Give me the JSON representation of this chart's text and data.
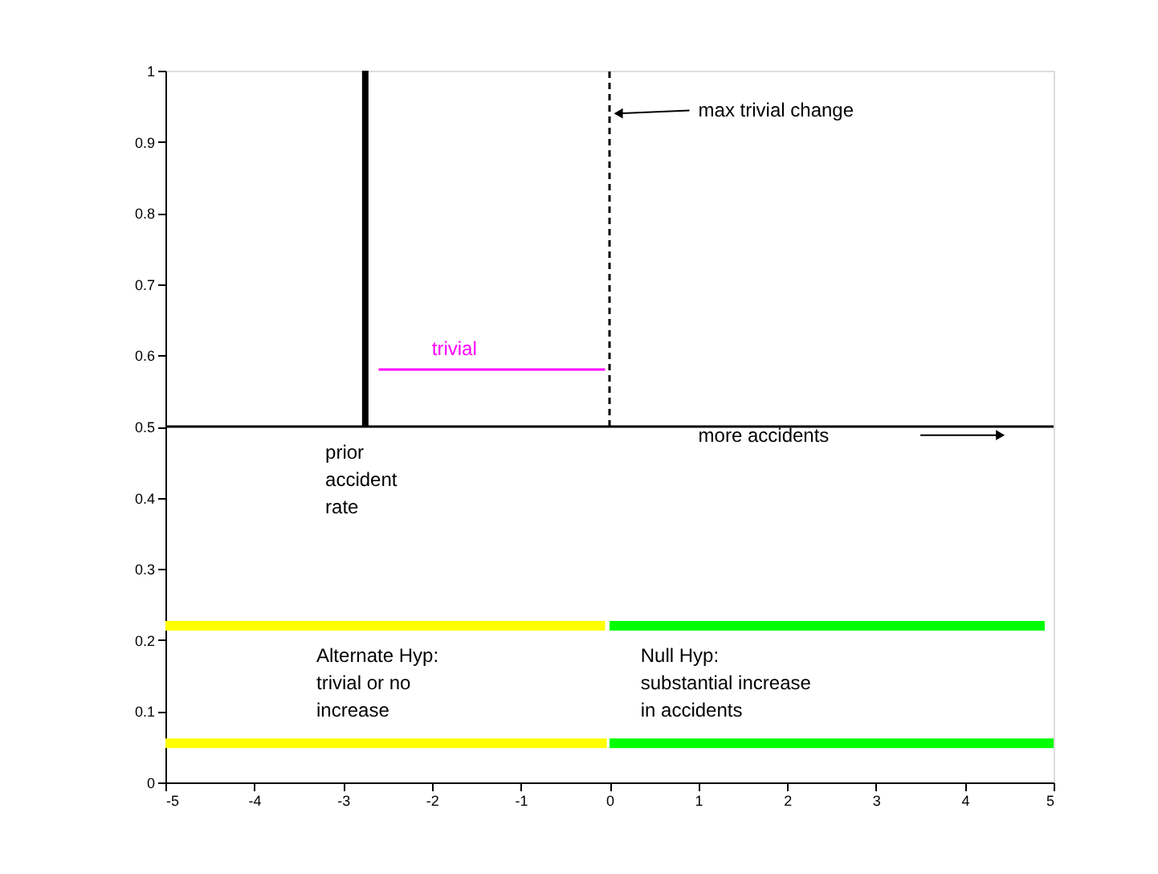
{
  "chart_data": {
    "type": "line",
    "xlim": [
      -5,
      5
    ],
    "ylim": [
      0,
      1
    ],
    "xticks": [
      -5,
      -4,
      -3,
      -2,
      -1,
      0,
      1,
      2,
      3,
      4,
      5
    ],
    "yticks": [
      0,
      0.1,
      0.2,
      0.3,
      0.4,
      0.5,
      0.6,
      0.7,
      0.8,
      0.9,
      1
    ],
    "marker": "none",
    "series": [
      {
        "color": "#000000",
        "x": [
          -2.75,
          -2.75
        ],
        "values": [
          0.5,
          1
        ]
      },
      {
        "color": "#000000",
        "x": [
          0,
          0
        ],
        "values": [
          0.5,
          1
        ],
        "line_style": "dashed"
      },
      {
        "color": "#ff00ff",
        "x": [
          -2.6,
          -0.05
        ],
        "values": [
          0.58,
          0.58
        ]
      },
      {
        "color": "#000000",
        "x": [
          -5,
          5
        ],
        "values": [
          0.5,
          0.5
        ]
      },
      {
        "color": "#ffff00",
        "x": [
          -5,
          -0.05
        ],
        "values": [
          0.22,
          0.22
        ]
      },
      {
        "color": "#00ff00",
        "x": [
          0,
          4.9
        ],
        "values": [
          0.22,
          0.22
        ]
      },
      {
        "color": "#ffff00",
        "x": [
          -5,
          -0.03
        ],
        "values": [
          0.055,
          0.055
        ]
      },
      {
        "color": "#00ff00",
        "x": [
          0,
          5
        ],
        "values": [
          0.055,
          0.055
        ]
      },
      {
        "color": "#000000",
        "x": [
          0.9,
          0.1
        ],
        "values": [
          0.944,
          0.94
        ],
        "marker": "triangle"
      },
      {
        "color": "#000000",
        "x": [
          3.5,
          4.4
        ],
        "values": [
          0.488,
          0.488
        ],
        "marker": "triangle"
      }
    ],
    "annotations": [
      "trivial",
      "max trivial change",
      "prior\naccident\nrate",
      "more accidents",
      "Alternate Hyp:\n trivial or no\n increase",
      "Null Hyp:\n substantial increase\n in accidents"
    ]
  }
}
